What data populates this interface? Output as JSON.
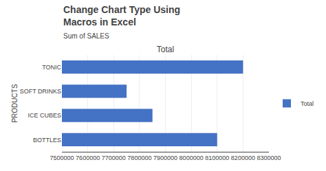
{
  "chart_data": {
    "type": "bar",
    "orientation": "horizontal",
    "title": "Total",
    "categories": [
      "TONIC",
      "SOFT DRINKS",
      "ICE CUBES",
      "BOTTLES"
    ],
    "series": [
      {
        "name": "Total",
        "color": "#4472C4",
        "values": [
          8200000,
          7750000,
          7850000,
          8100000
        ]
      }
    ],
    "xlim": [
      7500000,
      8300000
    ],
    "xticks": [
      7500000,
      7600000,
      7700000,
      7800000,
      7900000,
      8000000,
      8100000,
      8200000,
      8300000
    ],
    "ylabel": "PRODUCTS",
    "annotations": [
      "Change Chart Type Using",
      "Macros in Excel",
      "Sum of SALES"
    ],
    "grid": true,
    "legend": "right"
  }
}
